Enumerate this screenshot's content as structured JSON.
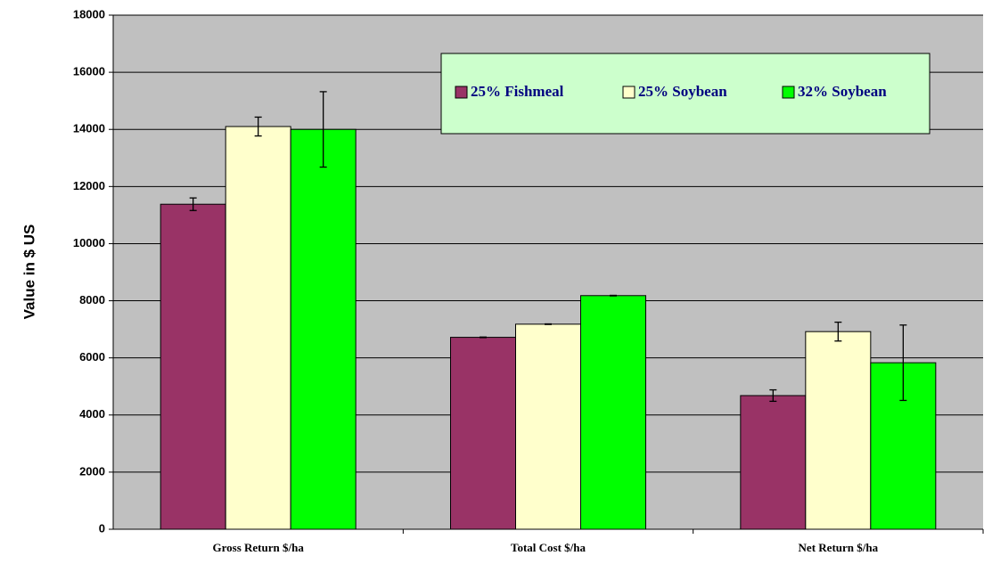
{
  "chart_data": {
    "type": "bar",
    "y_label": "Value in $ US",
    "categories": [
      "Gross Return $/ha",
      "Total Cost $/ha",
      "Net Return $/ha"
    ],
    "series": [
      {
        "name": "25% Fishmeal",
        "color": "#993366",
        "values": [
          11380,
          6720,
          4680
        ],
        "errors": [
          220,
          10,
          200
        ]
      },
      {
        "name": "25% Soybean",
        "color": "#ffffcc",
        "values": [
          14100,
          7180,
          6920
        ],
        "errors": [
          330,
          10,
          330
        ]
      },
      {
        "name": "32% Soybean",
        "color": "#00ff00",
        "values": [
          14000,
          8180,
          5830
        ],
        "errors": [
          1320,
          10,
          1320
        ]
      }
    ],
    "ylim": [
      0,
      18000
    ],
    "yticks": [
      0,
      2000,
      4000,
      6000,
      8000,
      10000,
      12000,
      14000,
      16000,
      18000
    ],
    "grid": true,
    "plot_background": "#c0c0c0",
    "legend_background": "#ccffcc"
  }
}
